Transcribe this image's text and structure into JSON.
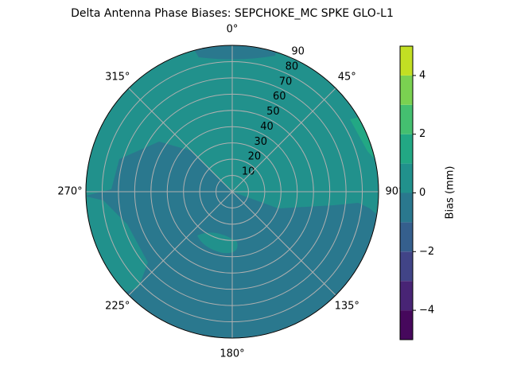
{
  "chart_data": {
    "type": "polar_contour",
    "title": "Delta Antenna Phase Biases: SEPCHOKE_MC      SPKE GLO-L1",
    "theta_direction": "clockwise",
    "theta_zero": "top",
    "thetaticks": [
      {
        "value": 0,
        "label": "0°"
      },
      {
        "value": 45,
        "label": "45°"
      },
      {
        "value": 90,
        "label": "90°"
      },
      {
        "value": 135,
        "label": "135°"
      },
      {
        "value": 180,
        "label": "180°"
      },
      {
        "value": 225,
        "label": "225°"
      },
      {
        "value": 270,
        "label": "270°"
      },
      {
        "value": 315,
        "label": "315°"
      }
    ],
    "rlim": [
      0,
      90
    ],
    "rticks": [
      10,
      20,
      30,
      40,
      50,
      60,
      70,
      80,
      90
    ],
    "grid": true,
    "levels": [
      -5,
      -4,
      -3,
      -2,
      -1,
      0,
      1,
      2,
      3,
      4,
      5
    ],
    "colors": [
      "#46085c",
      "#482475",
      "#414487",
      "#355f8d",
      "#2a788e",
      "#21918c",
      "#22a884",
      "#44bf70",
      "#7ad151",
      "#c2df23"
    ],
    "colorbar_label": "Bias (mm)",
    "colorbar_ticks": [
      {
        "value": -4,
        "label": "−4"
      },
      {
        "value": -2,
        "label": "−2"
      },
      0,
      2,
      4
    ]
  }
}
